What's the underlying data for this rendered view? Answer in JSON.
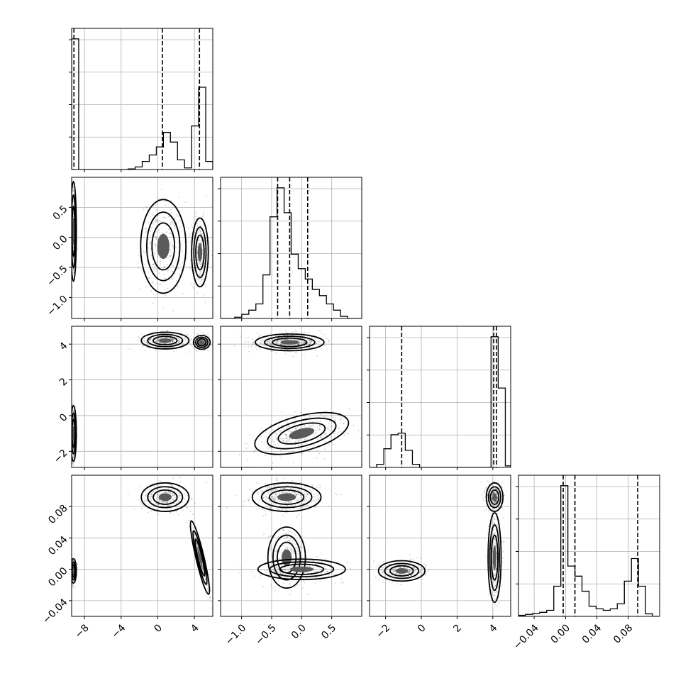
{
  "chart_data": {
    "type": "corner",
    "title": "",
    "grid": true,
    "variables": [
      {
        "range": [
          -9.4,
          6.0
        ],
        "ticks": [
          -8,
          -4,
          0,
          4
        ],
        "tick_labels": [
          "−8",
          "−4",
          "0",
          "4"
        ],
        "quantiles": [
          -9.15,
          0.5,
          4.55
        ],
        "hist_edges": [
          -9.4,
          -8.63,
          -7.86,
          -7.09,
          -6.32,
          -5.55,
          -4.78,
          -4.01,
          -3.24,
          -2.47,
          -1.7,
          -0.93,
          -0.16,
          0.61,
          1.38,
          2.15,
          2.92,
          3.69,
          4.46,
          5.23,
          6.0
        ],
        "hist_counts": [
          4.05,
          0,
          0,
          0,
          0,
          0,
          0,
          0,
          0.02,
          0.08,
          0.25,
          0.45,
          0.7,
          1.15,
          0.85,
          0.3,
          0.05,
          1.35,
          2.55,
          0.25
        ]
      },
      {
        "range": [
          -1.35,
          1.0
        ],
        "ticks": [
          -1.0,
          -0.5,
          0.0,
          0.5
        ],
        "tick_labels": [
          "−1.0",
          "−0.5",
          "0.0",
          "0.5"
        ],
        "quantiles": [
          -0.4,
          -0.2,
          0.1
        ],
        "hist_edges": [
          -1.35,
          -1.2325,
          -1.115,
          -0.9975,
          -0.88,
          -0.7625,
          -0.645,
          -0.5275,
          -0.41,
          -0.2925,
          -0.175,
          -0.0575,
          0.06,
          0.1775,
          0.295,
          0.4125,
          0.53,
          0.6475,
          0.765,
          0.8825,
          1.0
        ],
        "hist_counts": [
          0,
          0,
          0.03,
          0.1,
          0.2,
          0.35,
          1.05,
          2.45,
          3.15,
          2.55,
          1.55,
          1.2,
          0.95,
          0.7,
          0.55,
          0.35,
          0.2,
          0.05,
          0,
          0
        ]
      },
      {
        "range": [
          -2.9,
          5.0
        ],
        "ticks": [
          -2,
          0,
          2,
          4
        ],
        "tick_labels": [
          "−2",
          "0",
          "2",
          "4"
        ],
        "quantiles": [
          -1.1,
          4.05,
          4.2
        ],
        "hist_edges": [
          -2.9,
          -2.5,
          -2.1,
          -1.7,
          -1.3,
          -0.9,
          -0.5,
          -0.1,
          0.3,
          0.7,
          1.1,
          1.5,
          1.9,
          2.3,
          2.7,
          3.1,
          3.5,
          3.9,
          4.3,
          4.7,
          5.0
        ],
        "hist_counts": [
          0,
          0.1,
          0.6,
          1.05,
          1.1,
          0.55,
          0.1,
          0,
          0,
          0,
          0,
          0,
          0,
          0,
          0,
          0,
          0,
          4.2,
          2.55,
          0.05
        ]
      },
      {
        "range": [
          -0.06,
          0.12
        ],
        "ticks": [
          -0.04,
          0.0,
          0.04,
          0.08
        ],
        "tick_labels": [
          "−0.04",
          "0.00",
          "0.04",
          "0.08"
        ],
        "quantiles": [
          -0.003,
          0.012,
          0.092
        ],
        "hist_edges": [
          -0.06,
          -0.051,
          -0.042,
          -0.033,
          -0.024,
          -0.015,
          -0.006,
          0.003,
          0.012,
          0.021,
          0.03,
          0.039,
          0.048,
          0.057,
          0.066,
          0.075,
          0.084,
          0.093,
          0.102,
          0.111,
          0.12
        ],
        "hist_counts": [
          0.02,
          0.04,
          0.06,
          0.08,
          0.12,
          0.6,
          2.6,
          1.0,
          0.8,
          0.5,
          0.2,
          0.15,
          0.12,
          0.15,
          0.25,
          0.7,
          1.15,
          0.6,
          0.05,
          0
        ]
      }
    ],
    "pair_modes": [
      {
        "row": 1,
        "col": 0,
        "modes": [
          {
            "cx": -9.2,
            "cy": 0.1,
            "sx": 0.12,
            "sy": 0.32,
            "rho": 0.0,
            "weight": 0.35
          },
          {
            "cx": 0.6,
            "cy": -0.15,
            "sx": 0.95,
            "sy": 0.3,
            "rho": 0.0,
            "weight": 0.35
          },
          {
            "cx": 4.6,
            "cy": -0.25,
            "sx": 0.35,
            "sy": 0.22,
            "rho": 0.0,
            "weight": 0.3
          }
        ]
      },
      {
        "row": 2,
        "col": 0,
        "modes": [
          {
            "cx": -9.2,
            "cy": -1.0,
            "sx": 0.12,
            "sy": 0.6,
            "rho": 0.0,
            "weight": 0.35
          },
          {
            "cx": 0.8,
            "cy": 4.2,
            "sx": 1.0,
            "sy": 0.18,
            "rho": 0.0,
            "weight": 0.35
          },
          {
            "cx": 4.8,
            "cy": 4.1,
            "sx": 0.35,
            "sy": 0.15,
            "rho": 0.0,
            "weight": 0.3
          }
        ]
      },
      {
        "row": 3,
        "col": 0,
        "modes": [
          {
            "cx": -9.2,
            "cy": -0.002,
            "sx": 0.12,
            "sy": 0.006,
            "rho": 0.0,
            "weight": 0.35
          },
          {
            "cx": 0.8,
            "cy": 0.092,
            "sx": 1.0,
            "sy": 0.007,
            "rho": 0.0,
            "weight": 0.33
          },
          {
            "cx": 4.6,
            "cy": 0.015,
            "sx": 0.4,
            "sy": 0.018,
            "rho": -0.9,
            "weight": 0.32
          }
        ]
      },
      {
        "row": 2,
        "col": 1,
        "modes": [
          {
            "cx": -0.2,
            "cy": 4.1,
            "sx": 0.22,
            "sy": 0.18,
            "rho": 0.0,
            "weight": 0.6
          },
          {
            "cx": 0.0,
            "cy": -1.0,
            "sx": 0.3,
            "sy": 0.45,
            "rho": 0.5,
            "weight": 0.4
          }
        ]
      },
      {
        "row": 3,
        "col": 1,
        "modes": [
          {
            "cx": -0.25,
            "cy": 0.092,
            "sx": 0.22,
            "sy": 0.007,
            "rho": 0.0,
            "weight": 0.5
          },
          {
            "cx": -0.25,
            "cy": 0.015,
            "sx": 0.12,
            "sy": 0.015,
            "rho": 0.0,
            "weight": 0.25
          },
          {
            "cx": 0.0,
            "cy": 0.0,
            "sx": 0.28,
            "sy": 0.005,
            "rho": 0.0,
            "weight": 0.25
          }
        ]
      },
      {
        "row": 3,
        "col": 2,
        "modes": [
          {
            "cx": -1.1,
            "cy": -0.002,
            "sx": 0.5,
            "sy": 0.005,
            "rho": 0.0,
            "weight": 0.35
          },
          {
            "cx": 4.1,
            "cy": 0.092,
            "sx": 0.18,
            "sy": 0.007,
            "rho": 0.0,
            "weight": 0.35
          },
          {
            "cx": 4.1,
            "cy": 0.015,
            "sx": 0.14,
            "sy": 0.022,
            "rho": 0.0,
            "weight": 0.3
          }
        ]
      }
    ]
  }
}
